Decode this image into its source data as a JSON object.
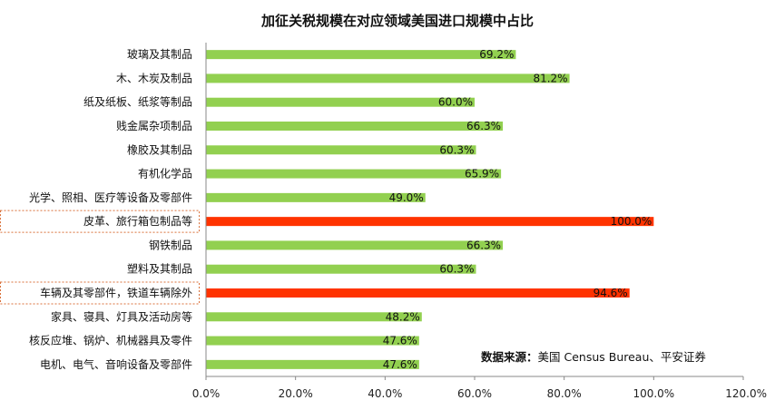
{
  "chart_data": {
    "type": "bar",
    "orientation": "horizontal",
    "title": "加征关税规模在对应领域美国进口规模中占比",
    "categories": [
      "玻璃及其制品",
      "木、木炭及制品",
      "纸及纸板、纸浆等制品",
      "贱金属杂项制品",
      "橡胶及其制品",
      "有机化学品",
      "光学、照相、医疗等设备及零部件",
      "皮革、旅行箱包制品等",
      "钢铁制品",
      "塑料及其制品",
      "车辆及其零部件，铁道车辆除外",
      "家具、寝具、灯具及活动房等",
      "核反应堆、锅炉、机械器具及零件",
      "电机、电气、音响设备及零部件"
    ],
    "values": [
      69.2,
      81.2,
      60.0,
      66.3,
      60.3,
      65.9,
      49.0,
      100.0,
      66.3,
      60.3,
      94.6,
      48.2,
      47.6,
      47.6
    ],
    "value_labels": [
      "69.2%",
      "81.2%",
      "60.0%",
      "66.3%",
      "60.3%",
      "65.9%",
      "49.0%",
      "100.0%",
      "66.3%",
      "60.3%",
      "94.6%",
      "48.2%",
      "47.6%",
      "47.6%"
    ],
    "highlighted": [
      false,
      false,
      false,
      false,
      false,
      false,
      false,
      true,
      false,
      false,
      true,
      false,
      false,
      false
    ],
    "xlim": [
      0,
      120
    ],
    "x_ticks": [
      0,
      20,
      40,
      60,
      80,
      100,
      120
    ],
    "x_tick_labels": [
      "0.0%",
      "20.0%",
      "40.0%",
      "60.0%",
      "80.0%",
      "100.0%",
      "120.0%"
    ],
    "xlabel": "",
    "ylabel": "",
    "grid": false,
    "colors": {
      "bar": "#92d050",
      "highlight": "#ff3300",
      "highlight_box": "#d9703a"
    }
  },
  "source_note": {
    "label": "数据来源：",
    "text": "美国 Census Bureau、平安证券"
  }
}
